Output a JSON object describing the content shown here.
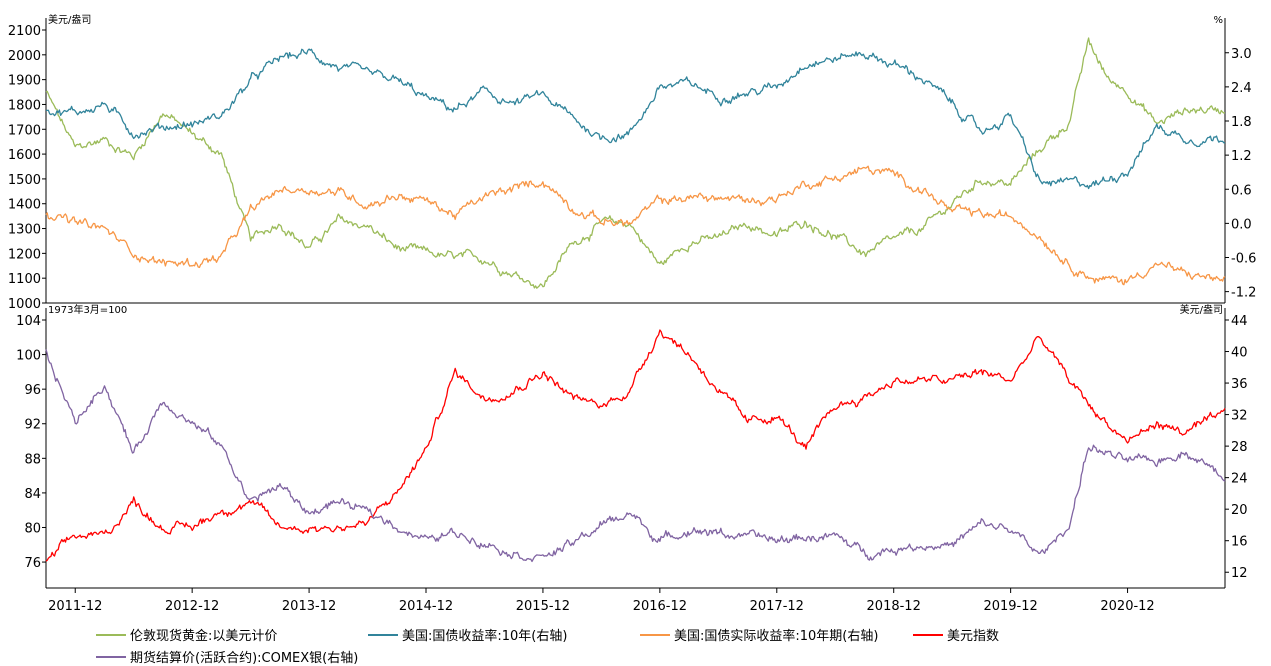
{
  "chart_data": [
    {
      "type": "line",
      "panel": "top",
      "left_unit": "美元/盎司",
      "right_unit": "%",
      "left_axis": {
        "ylim": [
          1000,
          2100
        ],
        "ticks": [
          1000,
          1100,
          1200,
          1300,
          1400,
          1500,
          1600,
          1700,
          1800,
          1900,
          2000,
          2100
        ]
      },
      "right_axis": {
        "ylim": [
          -1.4,
          3.4
        ],
        "ticks": [
          "-1.2",
          "-0.6",
          "0.0",
          "0.6",
          "1.2",
          "1.8",
          "2.4",
          "3.0"
        ]
      },
      "x_range": [
        "2011-09",
        "2021-10"
      ],
      "series": [
        {
          "name": "伦敦现货黄金:以美元计价",
          "axis": "left",
          "color": "#9bbb59",
          "x": [
            "2011-09",
            "2011-12",
            "2012-03",
            "2012-06",
            "2012-09",
            "2012-12",
            "2013-03",
            "2013-06",
            "2013-09",
            "2013-12",
            "2014-03",
            "2014-06",
            "2014-09",
            "2014-12",
            "2015-03",
            "2015-06",
            "2015-09",
            "2015-12",
            "2016-03",
            "2016-06",
            "2016-09",
            "2016-12",
            "2017-03",
            "2017-06",
            "2017-09",
            "2017-12",
            "2018-03",
            "2018-06",
            "2018-09",
            "2018-12",
            "2019-03",
            "2019-06",
            "2019-09",
            "2019-12",
            "2020-03",
            "2020-06",
            "2020-08",
            "2020-10",
            "2020-12",
            "2021-03",
            "2021-06",
            "2021-10"
          ],
          "y": [
            1850,
            1620,
            1660,
            1590,
            1770,
            1680,
            1600,
            1250,
            1330,
            1220,
            1330,
            1310,
            1220,
            1200,
            1180,
            1180,
            1120,
            1070,
            1240,
            1320,
            1320,
            1150,
            1250,
            1260,
            1320,
            1270,
            1330,
            1270,
            1200,
            1250,
            1300,
            1400,
            1500,
            1480,
            1620,
            1730,
            2050,
            1900,
            1860,
            1720,
            1780,
            1780
          ]
        },
        {
          "name": "美国:国债收益率:10年(右轴)",
          "axis": "right",
          "color": "#31849b",
          "x": [
            "2011-09",
            "2011-12",
            "2012-03",
            "2012-06",
            "2012-09",
            "2012-12",
            "2013-03",
            "2013-06",
            "2013-09",
            "2013-12",
            "2014-03",
            "2014-06",
            "2014-09",
            "2014-12",
            "2015-03",
            "2015-06",
            "2015-09",
            "2015-12",
            "2016-03",
            "2016-06",
            "2016-09",
            "2016-12",
            "2017-03",
            "2017-06",
            "2017-09",
            "2017-12",
            "2018-03",
            "2018-06",
            "2018-09",
            "2018-12",
            "2019-03",
            "2019-06",
            "2019-09",
            "2019-12",
            "2020-03",
            "2020-06",
            "2020-09",
            "2020-12",
            "2021-03",
            "2021-06",
            "2021-10"
          ],
          "y": [
            2.0,
            1.95,
            2.1,
            1.6,
            1.7,
            1.75,
            1.9,
            2.5,
            2.9,
            3.0,
            2.75,
            2.6,
            2.5,
            2.2,
            2.0,
            2.3,
            2.1,
            2.25,
            1.85,
            1.5,
            1.6,
            2.4,
            2.45,
            2.25,
            2.3,
            2.4,
            2.85,
            2.9,
            3.0,
            2.8,
            2.55,
            2.1,
            1.6,
            1.9,
            0.7,
            0.7,
            0.7,
            0.95,
            1.7,
            1.5,
            1.5
          ]
        },
        {
          "name": "美国:国债实际收益率:10年期(右轴)",
          "axis": "right",
          "color": "#f79646",
          "x": [
            "2011-09",
            "2011-12",
            "2012-03",
            "2012-06",
            "2012-09",
            "2012-12",
            "2013-03",
            "2013-06",
            "2013-09",
            "2013-12",
            "2014-03",
            "2014-06",
            "2014-09",
            "2014-12",
            "2015-03",
            "2015-06",
            "2015-09",
            "2015-12",
            "2016-03",
            "2016-06",
            "2016-09",
            "2016-12",
            "2017-03",
            "2017-06",
            "2017-09",
            "2017-12",
            "2018-03",
            "2018-06",
            "2018-09",
            "2018-12",
            "2019-03",
            "2019-06",
            "2019-09",
            "2019-12",
            "2020-01",
            "2020-03",
            "2020-06",
            "2020-09",
            "2020-12",
            "2021-03",
            "2021-06",
            "2021-10"
          ],
          "y": [
            0.2,
            0.0,
            -0.1,
            -0.5,
            -0.7,
            -0.7,
            -0.6,
            0.2,
            0.6,
            0.6,
            0.55,
            0.35,
            0.5,
            0.4,
            0.15,
            0.45,
            0.6,
            0.75,
            0.3,
            0.05,
            0.0,
            0.4,
            0.45,
            0.45,
            0.4,
            0.45,
            0.7,
            0.8,
            0.95,
            0.85,
            0.6,
            0.2,
            0.15,
            0.1,
            0.05,
            -0.2,
            -0.7,
            -1.0,
            -1.0,
            -0.7,
            -0.9,
            -1.0
          ]
        },
        {
          "name": "美元指数",
          "axis": "lower-left",
          "color": "#ff0000",
          "x": [
            "2011-09",
            "2011-12",
            "2012-03",
            "2012-06",
            "2012-09",
            "2012-12",
            "2013-03",
            "2013-06",
            "2013-09",
            "2013-12",
            "2014-03",
            "2014-06",
            "2014-09",
            "2014-12",
            "2015-03",
            "2015-06",
            "2015-09",
            "2015-12",
            "2016-03",
            "2016-06",
            "2016-09",
            "2016-12",
            "2017-03",
            "2017-06",
            "2017-09",
            "2017-12",
            "2018-03",
            "2018-06",
            "2018-09",
            "2018-12",
            "2019-03",
            "2019-06",
            "2019-09",
            "2019-12",
            "2020-03",
            "2020-06",
            "2020-09",
            "2020-12",
            "2021-03",
            "2021-06",
            "2021-10"
          ],
          "y": [
            76,
            79,
            79,
            83,
            80,
            80,
            82,
            83,
            80,
            80,
            80,
            80.5,
            84,
            89,
            98,
            95,
            96,
            98,
            95,
            94,
            96,
            103,
            100,
            96,
            92,
            93,
            89,
            94,
            95,
            97,
            97,
            97,
            98,
            97,
            102,
            97,
            93,
            90,
            92,
            91,
            93
          ]
        },
        {
          "name": "期货结算价(活跃合约):COMEX银(右轴)",
          "axis": "lower-right",
          "color": "#8064a2",
          "x": [
            "2011-09",
            "2011-12",
            "2012-03",
            "2012-06",
            "2012-09",
            "2012-12",
            "2013-03",
            "2013-06",
            "2013-09",
            "2013-12",
            "2014-03",
            "2014-06",
            "2014-09",
            "2014-12",
            "2015-03",
            "2015-06",
            "2015-09",
            "2015-12",
            "2016-03",
            "2016-06",
            "2016-09",
            "2016-12",
            "2017-03",
            "2017-06",
            "2017-09",
            "2017-12",
            "2018-03",
            "2018-06",
            "2018-09",
            "2018-12",
            "2019-03",
            "2019-06",
            "2019-09",
            "2019-12",
            "2020-03",
            "2020-06",
            "2020-08",
            "2020-12",
            "2021-03",
            "2021-06",
            "2021-10"
          ],
          "y": [
            40,
            31,
            36,
            27,
            34,
            31,
            28,
            21,
            23,
            19.5,
            21,
            19.5,
            18,
            16,
            17,
            16,
            14.5,
            14,
            15.5,
            18,
            19.5,
            16,
            17.5,
            17,
            16.5,
            16,
            16.5,
            16.5,
            14.5,
            15,
            15.5,
            15.5,
            18,
            17.5,
            14,
            18,
            28,
            26,
            26,
            27.5,
            24
          ]
        }
      ]
    },
    {
      "type": "line",
      "panel": "bottom",
      "left_unit": "1973年3月=100",
      "right_unit": "美元/盎司",
      "left_axis": {
        "ylim": [
          73,
          104
        ],
        "ticks": [
          76,
          80,
          84,
          88,
          92,
          96,
          100,
          104
        ]
      },
      "right_axis": {
        "ylim": [
          10,
          44
        ],
        "ticks": [
          12,
          16,
          20,
          24,
          28,
          32,
          36,
          40,
          44
        ]
      }
    }
  ],
  "x_axis": {
    "tick_labels": [
      "2011-12",
      "2012-12",
      "2013-12",
      "2014-12",
      "2015-12",
      "2016-12",
      "2017-12",
      "2018-12",
      "2019-12",
      "2020-12"
    ]
  },
  "legend": {
    "placement": "bottom",
    "items": [
      {
        "label": "伦敦现货黄金:以美元计价",
        "color": "#9bbb59"
      },
      {
        "label": "美国:国债收益率:10年(右轴)",
        "color": "#31849b"
      },
      {
        "label": "美国:国债实际收益率:10年期(右轴)",
        "color": "#f79646"
      },
      {
        "label": "美元指数",
        "color": "#ff0000"
      },
      {
        "label": "期货结算价(活跃合约):COMEX银(右轴)",
        "color": "#8064a2"
      }
    ]
  }
}
